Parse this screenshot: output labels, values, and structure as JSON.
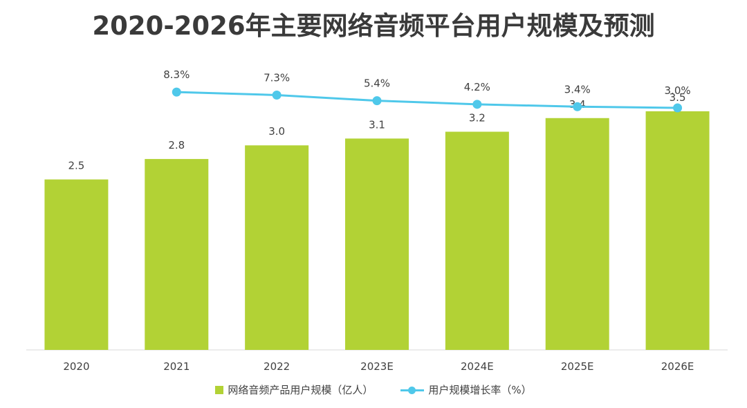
{
  "chart_data": {
    "type": "bar+line",
    "title": "2020-2026年主要网络音频平台用户规模及预测",
    "categories": [
      "2020",
      "2021",
      "2022",
      "2023E",
      "2024E",
      "2025E",
      "2026E"
    ],
    "series": [
      {
        "name": "网络音频产品用户规模（亿人）",
        "type": "bar",
        "color": "#b2d235",
        "values": [
          2.5,
          2.8,
          3.0,
          3.1,
          3.2,
          3.4,
          3.5
        ],
        "labels": [
          "2.5",
          "2.8",
          "3.0",
          "3.1",
          "3.2",
          "3.4",
          "3.5"
        ]
      },
      {
        "name": "用户规模增长率（%）",
        "type": "line",
        "color": "#4fc8ea",
        "values": [
          null,
          8.3,
          7.3,
          5.4,
          4.2,
          3.4,
          3.0
        ],
        "labels": [
          "",
          "8.3%",
          "7.3%",
          "5.4%",
          "4.2%",
          "3.4%",
          "3.0%"
        ]
      }
    ],
    "legend_position": "bottom"
  }
}
